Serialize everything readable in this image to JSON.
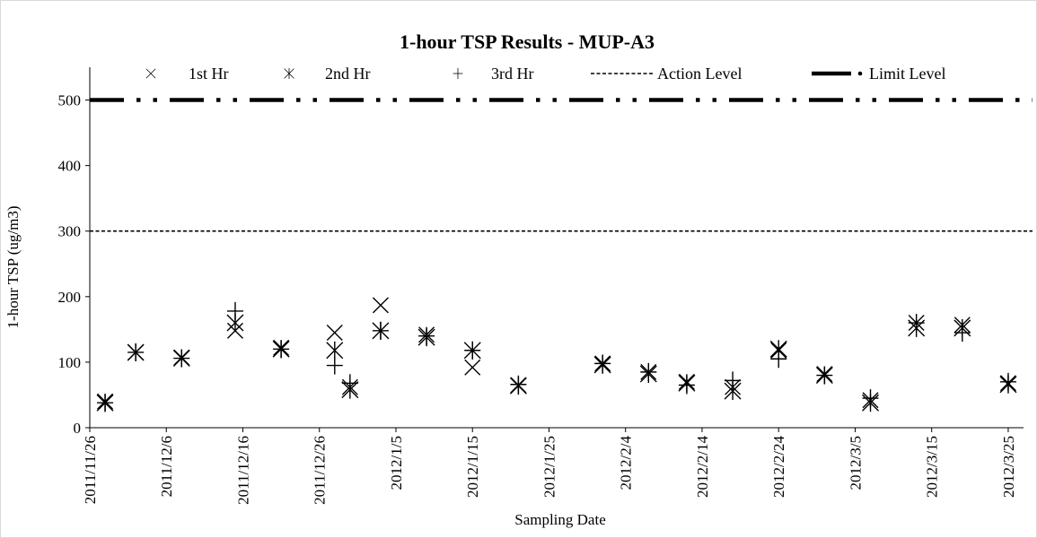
{
  "chart_data": {
    "type": "scatter",
    "title": "1-hour TSP Results - MUP-A3",
    "xlabel": "Sampling Date",
    "ylabel": "1-hour TSP (ug/m3)",
    "ylim": [
      0,
      550
    ],
    "yticks": [
      0,
      100,
      200,
      300,
      400,
      500
    ],
    "xlim": [
      "2011-11-26",
      "2012-03-27"
    ],
    "xticks": [
      "2011/11/26",
      "2011/12/6",
      "2011/12/16",
      "2011/12/26",
      "2012/1/5",
      "2012/1/15",
      "2012/1/25",
      "2012/2/4",
      "2012/2/14",
      "2012/2/24",
      "2012/3/5",
      "2012/3/15",
      "2012/3/25"
    ],
    "grid": false,
    "legend_position": "top",
    "series": [
      {
        "name": "1st Hr",
        "marker": "x",
        "points": [
          {
            "x": "2011-11-28",
            "y": 40
          },
          {
            "x": "2011-12-02",
            "y": 115
          },
          {
            "x": "2011-12-08",
            "y": 107
          },
          {
            "x": "2011-12-15",
            "y": 148
          },
          {
            "x": "2011-12-21",
            "y": 122
          },
          {
            "x": "2011-12-28",
            "y": 145
          },
          {
            "x": "2011-12-30",
            "y": 62
          },
          {
            "x": "2012-01-03",
            "y": 187
          },
          {
            "x": "2012-01-09",
            "y": 142
          },
          {
            "x": "2012-01-15",
            "y": 92
          },
          {
            "x": "2012-01-21",
            "y": 65
          },
          {
            "x": "2012-02-01",
            "y": 98
          },
          {
            "x": "2012-02-07",
            "y": 85
          },
          {
            "x": "2012-02-12",
            "y": 70
          },
          {
            "x": "2012-02-18",
            "y": 62
          },
          {
            "x": "2012-02-24",
            "y": 118
          },
          {
            "x": "2012-03-01",
            "y": 82
          },
          {
            "x": "2012-03-07",
            "y": 42
          },
          {
            "x": "2012-03-13",
            "y": 160
          },
          {
            "x": "2012-03-19",
            "y": 157
          },
          {
            "x": "2012-03-25",
            "y": 68
          }
        ]
      },
      {
        "name": "2nd Hr",
        "marker": "asterisk",
        "points": [
          {
            "x": "2011-11-28",
            "y": 38
          },
          {
            "x": "2011-12-02",
            "y": 115
          },
          {
            "x": "2011-12-08",
            "y": 106
          },
          {
            "x": "2011-12-15",
            "y": 160
          },
          {
            "x": "2011-12-21",
            "y": 120
          },
          {
            "x": "2011-12-28",
            "y": 118
          },
          {
            "x": "2011-12-30",
            "y": 58
          },
          {
            "x": "2012-01-03",
            "y": 148
          },
          {
            "x": "2012-01-09",
            "y": 138
          },
          {
            "x": "2012-01-15",
            "y": 118
          },
          {
            "x": "2012-01-21",
            "y": 64
          },
          {
            "x": "2012-02-01",
            "y": 96
          },
          {
            "x": "2012-02-07",
            "y": 82
          },
          {
            "x": "2012-02-12",
            "y": 68
          },
          {
            "x": "2012-02-18",
            "y": 56
          },
          {
            "x": "2012-02-24",
            "y": 120
          },
          {
            "x": "2012-03-01",
            "y": 80
          },
          {
            "x": "2012-03-07",
            "y": 38
          },
          {
            "x": "2012-03-13",
            "y": 152
          },
          {
            "x": "2012-03-19",
            "y": 152
          },
          {
            "x": "2012-03-25",
            "y": 66
          }
        ]
      },
      {
        "name": "3rd Hr",
        "marker": "plus",
        "points": [
          {
            "x": "2011-11-28",
            "y": 38
          },
          {
            "x": "2011-12-02",
            "y": 115
          },
          {
            "x": "2011-12-08",
            "y": 106
          },
          {
            "x": "2011-12-15",
            "y": 178
          },
          {
            "x": "2011-12-21",
            "y": 120
          },
          {
            "x": "2011-12-28",
            "y": 95
          },
          {
            "x": "2011-12-30",
            "y": 68
          },
          {
            "x": "2012-01-03",
            "y": 148
          },
          {
            "x": "2012-01-09",
            "y": 140
          },
          {
            "x": "2012-01-15",
            "y": 118
          },
          {
            "x": "2012-01-21",
            "y": 66
          },
          {
            "x": "2012-02-01",
            "y": 98
          },
          {
            "x": "2012-02-07",
            "y": 85
          },
          {
            "x": "2012-02-12",
            "y": 65
          },
          {
            "x": "2012-02-18",
            "y": 72
          },
          {
            "x": "2012-02-24",
            "y": 105
          },
          {
            "x": "2012-03-01",
            "y": 80
          },
          {
            "x": "2012-03-07",
            "y": 45
          },
          {
            "x": "2012-03-13",
            "y": 160
          },
          {
            "x": "2012-03-19",
            "y": 145
          },
          {
            "x": "2012-03-25",
            "y": 70
          }
        ]
      }
    ],
    "reference_lines": [
      {
        "name": "Action Level",
        "y": 300,
        "style": "dashed"
      },
      {
        "name": "Limit Level",
        "y": 500,
        "style": "dash-dot-dot"
      }
    ]
  }
}
